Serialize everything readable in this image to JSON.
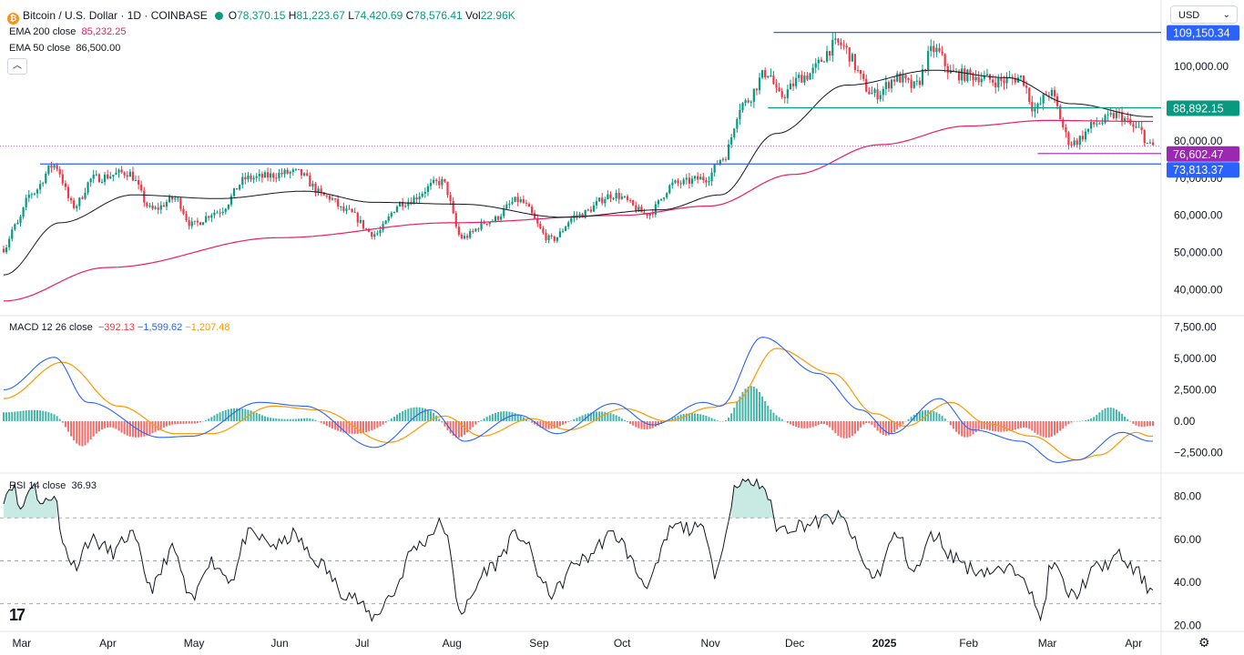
{
  "header": {
    "symbol_title": "Bitcoin / U.S. Dollar · 1D · COINBASE",
    "symbol_icon": "bitcoin-icon",
    "ohlc": {
      "o_label": "O",
      "o": "78,370.15",
      "h_label": "H",
      "h": "81,223.67",
      "l_label": "L",
      "l": "74,420.69",
      "c_label": "C",
      "c": "78,576.41",
      "vol_label": "Vol",
      "vol": "22.96K"
    },
    "ema200_label": "EMA 200 close",
    "ema200_value": "85,232.25",
    "ema50_label": "EMA 50 close",
    "ema50_value": "86,500.00"
  },
  "currency": {
    "selected": "USD"
  },
  "macd_legend": {
    "label": "MACD 12 26 close",
    "hist": "−392.13",
    "macd": "−1,599.62",
    "signal": "−1,207.48"
  },
  "rsi_legend": {
    "label": "RSI 14 close",
    "value": "36.93"
  },
  "colors": {
    "up": "#089981",
    "down": "#f23645",
    "ema200": "#e91e63",
    "ema50": "#131722",
    "macd": "#2962ff",
    "signal": "#ff9800",
    "line": "#2962ff",
    "accent_green": "#089981",
    "purple": "#9c27b0"
  },
  "chart_data": [
    {
      "type": "candlestick",
      "title": "Bitcoin / U.S. Dollar · 1D · COINBASE",
      "x_range": [
        "2024-02-24",
        "2025-04-08"
      ],
      "ylim": [
        35000,
        112000
      ],
      "y_ticks": [
        40000,
        50000,
        60000,
        70000,
        80000,
        100000
      ],
      "y_tick_labels": [
        "40,000.00",
        "50,000.00",
        "60,000.00",
        "70,000.00",
        "80,000.00",
        "100,000.00"
      ],
      "x_tick_labels": [
        {
          "date": "2024-03-01",
          "label": "Mar"
        },
        {
          "date": "2024-04-01",
          "label": "Apr"
        },
        {
          "date": "2024-05-01",
          "label": "May"
        },
        {
          "date": "2024-06-01",
          "label": "Jun"
        },
        {
          "date": "2024-07-01",
          "label": "Jul"
        },
        {
          "date": "2024-08-01",
          "label": "Aug"
        },
        {
          "date": "2024-09-01",
          "label": "Sep"
        },
        {
          "date": "2024-10-01",
          "label": "Oct"
        },
        {
          "date": "2024-11-01",
          "label": "Nov"
        },
        {
          "date": "2024-12-01",
          "label": "Dec"
        },
        {
          "date": "2025-01-01",
          "label": "2025"
        },
        {
          "date": "2025-02-01",
          "label": "Feb"
        },
        {
          "date": "2025-03-01",
          "label": "Mar"
        },
        {
          "date": "2025-04-01",
          "label": "Apr"
        }
      ],
      "close_anchors": [
        [
          "2024-02-24",
          51000
        ],
        [
          "2024-02-28",
          57000
        ],
        [
          "2024-03-05",
          66000
        ],
        [
          "2024-03-13",
          73500
        ],
        [
          "2024-03-20",
          62500
        ],
        [
          "2024-03-27",
          70000
        ],
        [
          "2024-04-08",
          71500
        ],
        [
          "2024-04-17",
          61500
        ],
        [
          "2024-04-25",
          64500
        ],
        [
          "2024-05-01",
          57500
        ],
        [
          "2024-05-10",
          61000
        ],
        [
          "2024-05-21",
          70000
        ],
        [
          "2024-06-07",
          71500
        ],
        [
          "2024-06-18",
          65000
        ],
        [
          "2024-06-25",
          61000
        ],
        [
          "2024-07-05",
          55000
        ],
        [
          "2024-07-15",
          63500
        ],
        [
          "2024-07-29",
          69000
        ],
        [
          "2024-08-05",
          54000
        ],
        [
          "2024-08-15",
          58500
        ],
        [
          "2024-08-25",
          64000
        ],
        [
          "2024-09-06",
          53500
        ],
        [
          "2024-09-15",
          60000
        ],
        [
          "2024-09-28",
          65500
        ],
        [
          "2024-10-10",
          60500
        ],
        [
          "2024-10-20",
          68500
        ],
        [
          "2024-10-31",
          70000
        ],
        [
          "2024-11-06",
          75500
        ],
        [
          "2024-11-13",
          90000
        ],
        [
          "2024-11-22",
          98500
        ],
        [
          "2024-11-26",
          92000
        ],
        [
          "2024-12-05",
          97500
        ],
        [
          "2024-12-17",
          106000
        ],
        [
          "2024-12-30",
          92500
        ],
        [
          "2025-01-07",
          97000
        ],
        [
          "2025-01-13",
          94500
        ],
        [
          "2025-01-20",
          104500
        ],
        [
          "2025-01-27",
          98000
        ],
        [
          "2025-02-03",
          97500
        ],
        [
          "2025-02-12",
          96000
        ],
        [
          "2025-02-20",
          97000
        ],
        [
          "2025-02-25",
          88500
        ],
        [
          "2025-03-02",
          93000
        ],
        [
          "2025-03-10",
          79500
        ],
        [
          "2025-03-20",
          85000
        ],
        [
          "2025-03-26",
          87000
        ],
        [
          "2025-04-03",
          83000
        ],
        [
          "2025-04-07",
          78576
        ]
      ],
      "ema50_anchors": [
        [
          "2024-02-24",
          44000
        ],
        [
          "2024-03-15",
          58000
        ],
        [
          "2024-04-10",
          65500
        ],
        [
          "2024-05-10",
          64500
        ],
        [
          "2024-06-10",
          66500
        ],
        [
          "2024-07-05",
          63500
        ],
        [
          "2024-08-05",
          63000
        ],
        [
          "2024-09-10",
          59500
        ],
        [
          "2024-10-15",
          61500
        ],
        [
          "2024-11-05",
          65500
        ],
        [
          "2024-11-25",
          82000
        ],
        [
          "2024-12-20",
          95000
        ],
        [
          "2025-01-20",
          99000
        ],
        [
          "2025-02-15",
          97000
        ],
        [
          "2025-03-10",
          90000
        ],
        [
          "2025-04-07",
          86500
        ]
      ],
      "ema200_anchors": [
        [
          "2024-02-24",
          37000
        ],
        [
          "2024-04-01",
          46000
        ],
        [
          "2024-06-01",
          54000
        ],
        [
          "2024-08-01",
          58000
        ],
        [
          "2024-10-01",
          60000
        ],
        [
          "2024-11-01",
          62500
        ],
        [
          "2024-12-01",
          71000
        ],
        [
          "2025-01-01",
          79000
        ],
        [
          "2025-02-01",
          84000
        ],
        [
          "2025-03-01",
          85500
        ],
        [
          "2025-04-07",
          85232
        ]
      ],
      "levels": [
        {
          "name": "resistance-109150",
          "value": 109150.34,
          "label": "109,150.34",
          "from": "2024-11-24",
          "color": "#2962ff"
        },
        {
          "name": "level-88892",
          "value": 88892.15,
          "label": "88,892.15",
          "from": "2024-11-22",
          "color": "#089981"
        },
        {
          "name": "level-76602",
          "value": 76602.47,
          "label": "76,602.47",
          "from": "2025-02-26",
          "color": "#9c27b0"
        },
        {
          "name": "support-73813",
          "value": 73813.37,
          "label": "73,813.37",
          "from": "2024-03-08",
          "color": "#2962ff"
        }
      ],
      "last_price": 78576.41
    },
    {
      "type": "line",
      "title": "MACD 12 26 close",
      "ylim": [
        -4000,
        8200
      ],
      "y_tick_labels": [
        {
          "v": 7500,
          "label": "7,500.00"
        },
        {
          "v": 5000,
          "label": "5,000.00"
        },
        {
          "v": 2500,
          "label": "2,500.00"
        },
        {
          "v": 0,
          "label": "0.00"
        },
        {
          "v": -2500,
          "label": "−2,500.00"
        }
      ],
      "macd_anchors": [
        [
          "2024-02-24",
          2500
        ],
        [
          "2024-03-13",
          5100
        ],
        [
          "2024-03-25",
          1500
        ],
        [
          "2024-04-20",
          -1300
        ],
        [
          "2024-05-01",
          -1200
        ],
        [
          "2024-05-25",
          1500
        ],
        [
          "2024-06-10",
          1200
        ],
        [
          "2024-07-05",
          -2100
        ],
        [
          "2024-07-25",
          900
        ],
        [
          "2024-08-06",
          -1600
        ],
        [
          "2024-08-25",
          500
        ],
        [
          "2024-09-08",
          -1000
        ],
        [
          "2024-09-28",
          1400
        ],
        [
          "2024-10-12",
          -300
        ],
        [
          "2024-10-30",
          1500
        ],
        [
          "2024-11-05",
          1200
        ],
        [
          "2024-11-20",
          6700
        ],
        [
          "2024-12-10",
          3800
        ],
        [
          "2024-12-25",
          900
        ],
        [
          "2025-01-05",
          -1000
        ],
        [
          "2025-01-22",
          1800
        ],
        [
          "2025-02-03",
          -700
        ],
        [
          "2025-02-20",
          -1600
        ],
        [
          "2025-03-05",
          -3300
        ],
        [
          "2025-03-12",
          -3100
        ],
        [
          "2025-03-28",
          -900
        ],
        [
          "2025-04-07",
          -1600
        ]
      ],
      "signal_anchors": [
        [
          "2024-02-24",
          1800
        ],
        [
          "2024-03-16",
          4700
        ],
        [
          "2024-04-05",
          1200
        ],
        [
          "2024-04-25",
          -1000
        ],
        [
          "2024-05-08",
          -1000
        ],
        [
          "2024-05-30",
          1200
        ],
        [
          "2024-06-15",
          900
        ],
        [
          "2024-07-10",
          -1700
        ],
        [
          "2024-07-30",
          400
        ],
        [
          "2024-08-12",
          -1200
        ],
        [
          "2024-08-30",
          200
        ],
        [
          "2024-09-12",
          -700
        ],
        [
          "2024-10-02",
          1000
        ],
        [
          "2024-10-17",
          0
        ],
        [
          "2024-11-02",
          1100
        ],
        [
          "2024-11-10",
          1500
        ],
        [
          "2024-11-25",
          5800
        ],
        [
          "2024-12-15",
          3800
        ],
        [
          "2024-12-30",
          600
        ],
        [
          "2025-01-10",
          -400
        ],
        [
          "2025-01-26",
          1500
        ],
        [
          "2025-02-08",
          -200
        ],
        [
          "2025-02-24",
          -1200
        ],
        [
          "2025-03-12",
          -3100
        ],
        [
          "2025-03-20",
          -2700
        ],
        [
          "2025-04-02",
          -900
        ],
        [
          "2025-04-07",
          -1207
        ]
      ]
    },
    {
      "type": "line",
      "title": "RSI 14 close",
      "ylim": [
        18,
        90
      ],
      "y_tick_labels": [
        {
          "v": 80,
          "label": "80.00"
        },
        {
          "v": 60,
          "label": "60.00"
        },
        {
          "v": 40,
          "label": "40.00"
        },
        {
          "v": 20,
          "label": "20.00"
        }
      ],
      "bands": [
        70,
        50,
        30
      ],
      "rsi_anchors": [
        [
          "2024-02-24",
          80
        ],
        [
          "2024-02-27",
          86
        ],
        [
          "2024-03-01",
          74
        ],
        [
          "2024-03-05",
          86
        ],
        [
          "2024-03-09",
          76
        ],
        [
          "2024-03-13",
          82
        ],
        [
          "2024-03-16",
          58
        ],
        [
          "2024-03-20",
          48
        ],
        [
          "2024-03-26",
          60
        ],
        [
          "2024-04-03",
          54
        ],
        [
          "2024-04-09",
          62
        ],
        [
          "2024-04-17",
          38
        ],
        [
          "2024-04-24",
          55
        ],
        [
          "2024-05-01",
          31
        ],
        [
          "2024-05-07",
          50
        ],
        [
          "2024-05-15",
          42
        ],
        [
          "2024-05-21",
          62
        ],
        [
          "2024-06-01",
          57
        ],
        [
          "2024-06-06",
          62
        ],
        [
          "2024-06-14",
          50
        ],
        [
          "2024-06-25",
          35
        ],
        [
          "2024-07-05",
          24
        ],
        [
          "2024-07-10",
          33
        ],
        [
          "2024-07-20",
          57
        ],
        [
          "2024-07-29",
          67
        ],
        [
          "2024-08-05",
          27
        ],
        [
          "2024-08-15",
          47
        ],
        [
          "2024-08-25",
          62
        ],
        [
          "2024-09-06",
          35
        ],
        [
          "2024-09-16",
          50
        ],
        [
          "2024-09-28",
          62
        ],
        [
          "2024-10-10",
          40
        ],
        [
          "2024-10-20",
          66
        ],
        [
          "2024-10-31",
          64
        ],
        [
          "2024-11-03",
          45
        ],
        [
          "2024-11-12",
          88
        ],
        [
          "2024-11-20",
          85
        ],
        [
          "2024-11-26",
          65
        ],
        [
          "2024-12-05",
          67
        ],
        [
          "2024-12-17",
          70
        ],
        [
          "2024-12-30",
          43
        ],
        [
          "2025-01-07",
          62
        ],
        [
          "2025-01-13",
          45
        ],
        [
          "2025-01-20",
          62
        ],
        [
          "2025-01-27",
          52
        ],
        [
          "2025-02-03",
          46
        ],
        [
          "2025-02-12",
          45
        ],
        [
          "2025-02-20",
          46
        ],
        [
          "2025-02-27",
          24
        ],
        [
          "2025-03-03",
          48
        ],
        [
          "2025-03-10",
          34
        ],
        [
          "2025-03-20",
          47
        ],
        [
          "2025-03-27",
          52
        ],
        [
          "2025-04-02",
          45
        ],
        [
          "2025-04-07",
          37
        ]
      ]
    }
  ]
}
